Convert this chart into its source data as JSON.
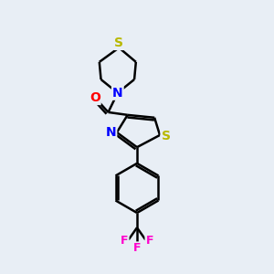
{
  "background_color": "#e8eef5",
  "bond_color": "#000000",
  "bond_width": 1.8,
  "atom_colors": {
    "S": "#b8b800",
    "N": "#0000ff",
    "O": "#ff0000",
    "F": "#ff00cc",
    "C": "#000000"
  },
  "figsize": [
    3.0,
    3.0
  ],
  "dpi": 100,
  "xlim": [
    0,
    10
  ],
  "ylim": [
    0,
    10
  ]
}
